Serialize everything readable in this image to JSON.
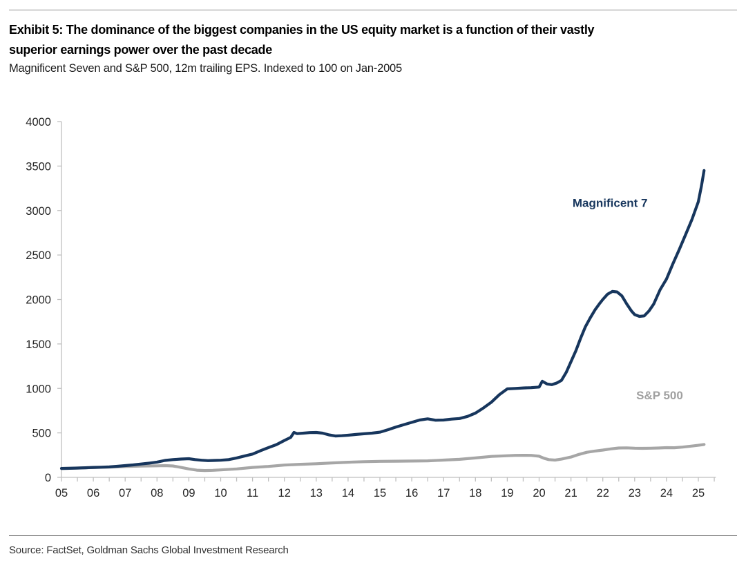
{
  "header": {
    "title_line1": "Exhibit 5: The dominance of the biggest companies in the US equity market is a function of their vastly",
    "title_line2": "superior earnings power over the past decade",
    "subtitle": "Magnificent Seven and S&P 500, 12m trailing EPS. Indexed to 100 on Jan-2005"
  },
  "footer": {
    "source": "Source: FactSet, Goldman Sachs Global Investment Research"
  },
  "chart_data": {
    "type": "line",
    "title": "Exhibit 5: The dominance of the biggest companies in the US equity market is a function of their vastly superior earnings power over the past decade",
    "subtitle": "Magnificent Seven and S&P 500, 12m trailing EPS. Indexed to 100 on Jan-2005",
    "xlabel": "",
    "ylabel": "",
    "grid": false,
    "legend_position": "inline-labels",
    "axes": {
      "x_min": 2005,
      "x_max": 2025.55,
      "x_minor_tick_step": 0.5,
      "y_min": 0,
      "y_max": 4000,
      "y_tick_step": 500,
      "axis_color": "#bfbfbf",
      "tick_label_color": "#262626"
    },
    "x_ticks": [
      "05",
      "06",
      "07",
      "08",
      "09",
      "10",
      "11",
      "12",
      "13",
      "14",
      "15",
      "16",
      "17",
      "18",
      "19",
      "20",
      "21",
      "22",
      "23",
      "24",
      "25"
    ],
    "y_ticks": [
      0,
      500,
      1000,
      1500,
      2000,
      2500,
      3000,
      3500,
      4000
    ],
    "series": [
      {
        "name": "S&P 500",
        "color": "#a6a6a6",
        "label_color": "#a0a0a0",
        "label_anchor": {
          "x_year": 2023.05,
          "y_value": 878
        },
        "x": [
          2005.0,
          2005.5,
          2006.0,
          2006.5,
          2007.0,
          2007.5,
          2008.0,
          2008.25,
          2008.5,
          2008.75,
          2009.0,
          2009.25,
          2009.5,
          2009.75,
          2010.0,
          2010.5,
          2011.0,
          2011.5,
          2012.0,
          2012.5,
          2013.0,
          2013.5,
          2014.0,
          2014.5,
          2015.0,
          2015.5,
          2016.0,
          2016.5,
          2017.0,
          2017.5,
          2018.0,
          2018.5,
          2019.0,
          2019.25,
          2019.5,
          2019.75,
          2020.0,
          2020.15,
          2020.3,
          2020.5,
          2020.7,
          2021.0,
          2021.25,
          2021.5,
          2021.75,
          2022.0,
          2022.25,
          2022.5,
          2022.75,
          2023.0,
          2023.25,
          2023.5,
          2023.75,
          2024.0,
          2024.25,
          2024.5,
          2024.75,
          2025.0,
          2025.18
        ],
        "y": [
          100,
          104,
          110,
          115,
          122,
          127,
          130,
          132,
          128,
          112,
          95,
          81,
          77,
          79,
          84,
          95,
          112,
          123,
          138,
          147,
          153,
          162,
          170,
          176,
          180,
          182,
          183,
          186,
          194,
          203,
          218,
          235,
          243,
          247,
          248,
          247,
          238,
          215,
          200,
          194,
          205,
          228,
          258,
          282,
          296,
          307,
          320,
          330,
          332,
          328,
          326,
          328,
          330,
          334,
          333,
          340,
          350,
          360,
          370
        ]
      },
      {
        "name": "Magnificent 7",
        "color": "#17365d",
        "label_color": "#17365d",
        "label_anchor": {
          "x_year": 2021.05,
          "y_value": 3040
        },
        "x": [
          2005.0,
          2005.25,
          2005.5,
          2005.75,
          2006.0,
          2006.25,
          2006.5,
          2006.75,
          2007.0,
          2007.25,
          2007.5,
          2007.75,
          2008.0,
          2008.25,
          2008.5,
          2008.75,
          2009.0,
          2009.2,
          2009.4,
          2009.6,
          2009.8,
          2010.0,
          2010.25,
          2010.5,
          2010.75,
          2011.0,
          2011.25,
          2011.5,
          2011.75,
          2012.0,
          2012.2,
          2012.3,
          2012.4,
          2012.6,
          2012.8,
          2013.0,
          2013.2,
          2013.4,
          2013.6,
          2013.8,
          2014.0,
          2014.25,
          2014.5,
          2014.75,
          2015.0,
          2015.25,
          2015.5,
          2015.75,
          2016.0,
          2016.25,
          2016.5,
          2016.75,
          2017.0,
          2017.25,
          2017.5,
          2017.75,
          2018.0,
          2018.25,
          2018.5,
          2018.75,
          2019.0,
          2019.25,
          2019.5,
          2019.75,
          2020.0,
          2020.1,
          2020.25,
          2020.4,
          2020.55,
          2020.7,
          2020.85,
          2021.0,
          2021.15,
          2021.3,
          2021.45,
          2021.6,
          2021.75,
          2021.9,
          2022.0,
          2022.15,
          2022.3,
          2022.45,
          2022.6,
          2022.75,
          2022.9,
          2023.0,
          2023.15,
          2023.3,
          2023.45,
          2023.6,
          2023.8,
          2024.0,
          2024.2,
          2024.4,
          2024.6,
          2024.8,
          2025.0,
          2025.1,
          2025.18
        ],
        "y": [
          100,
          102,
          105,
          108,
          112,
          114,
          117,
          124,
          132,
          140,
          150,
          160,
          172,
          190,
          200,
          206,
          210,
          200,
          193,
          188,
          190,
          193,
          200,
          218,
          240,
          262,
          300,
          335,
          368,
          415,
          450,
          505,
          492,
          497,
          503,
          505,
          497,
          478,
          465,
          468,
          474,
          482,
          490,
          497,
          508,
          535,
          565,
          592,
          618,
          645,
          658,
          642,
          645,
          655,
          662,
          685,
          722,
          780,
          845,
          930,
          995,
          1000,
          1005,
          1008,
          1015,
          1080,
          1050,
          1042,
          1060,
          1090,
          1180,
          1300,
          1420,
          1560,
          1690,
          1790,
          1880,
          1955,
          2000,
          2060,
          2090,
          2085,
          2040,
          1950,
          1870,
          1830,
          1810,
          1815,
          1870,
          1950,
          2110,
          2230,
          2400,
          2560,
          2730,
          2900,
          3100,
          3280,
          3450
        ]
      }
    ]
  }
}
